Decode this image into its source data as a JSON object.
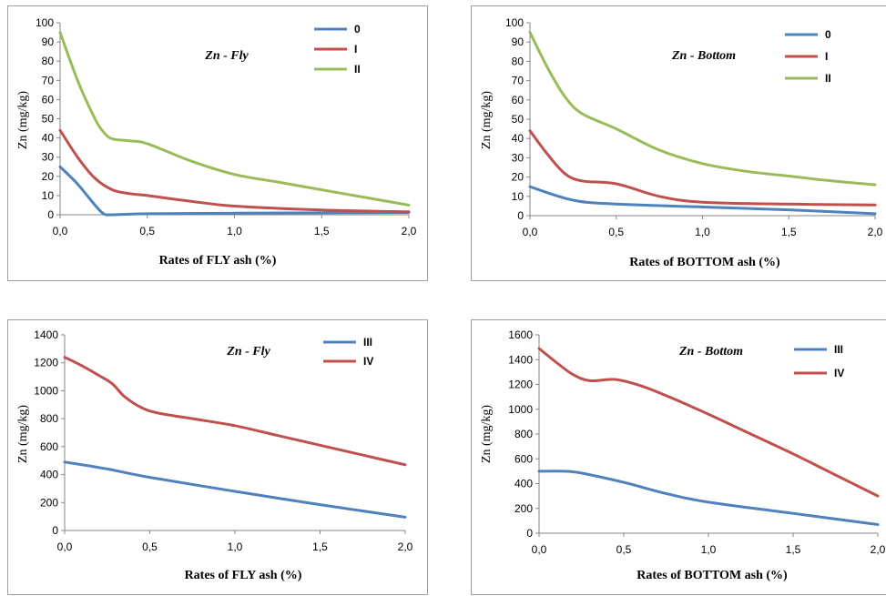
{
  "chart_data": [
    {
      "type": "line",
      "title": "Zn - Fly",
      "xlabel": "Rates of FLY ash (%)",
      "ylabel": "Zn (mg/kg)",
      "xlim": [
        0,
        2
      ],
      "ylim": [
        0,
        100
      ],
      "xticks": [
        "0,0",
        "0,5",
        "1,0",
        "1,5",
        "2,0"
      ],
      "yticks": [
        "0",
        "10",
        "20",
        "30",
        "40",
        "50",
        "60",
        "70",
        "80",
        "90",
        "100"
      ],
      "legend_position": "top-right",
      "grid": false,
      "series": [
        {
          "name": "0",
          "color": "#4f81bd",
          "x": [
            0,
            0.1,
            0.2,
            0.25,
            0.3,
            0.5,
            1.0,
            1.5,
            2.0
          ],
          "y": [
            25,
            16,
            5,
            0.5,
            0,
            0.5,
            0.8,
            1.0,
            1.2
          ]
        },
        {
          "name": "I",
          "color": "#c0504d",
          "x": [
            0,
            0.1,
            0.2,
            0.3,
            0.4,
            0.5,
            0.75,
            1.0,
            1.5,
            2.0
          ],
          "y": [
            44,
            30,
            19,
            13,
            11,
            10,
            7,
            4.5,
            2.5,
            1.5
          ]
        },
        {
          "name": "II",
          "color": "#9bbb59",
          "x": [
            0,
            0.1,
            0.2,
            0.25,
            0.3,
            0.4,
            0.5,
            0.75,
            1.0,
            1.25,
            1.5,
            1.75,
            2.0
          ],
          "y": [
            95,
            70,
            50,
            43,
            39.5,
            38.5,
            37,
            28,
            21,
            17,
            13,
            9,
            5
          ]
        }
      ]
    },
    {
      "type": "line",
      "title": "Zn - Bottom",
      "xlabel": "Rates of BOTTOM ash (%)",
      "ylabel": "Zn (mg/kg)",
      "xlim": [
        0,
        2
      ],
      "ylim": [
        0,
        100
      ],
      "xticks": [
        "0,0",
        "0,5",
        "1,0",
        "1,5",
        "2,0"
      ],
      "yticks": [
        "0",
        "10",
        "20",
        "30",
        "40",
        "50",
        "60",
        "70",
        "80",
        "90",
        "100"
      ],
      "legend_position": "top-right",
      "grid": false,
      "series": [
        {
          "name": "0",
          "color": "#4f81bd",
          "x": [
            0,
            0.25,
            0.5,
            1.0,
            1.5,
            2.0
          ],
          "y": [
            15,
            8,
            6,
            4.5,
            3,
            1
          ]
        },
        {
          "name": "I",
          "color": "#c0504d",
          "x": [
            0,
            0.1,
            0.2,
            0.3,
            0.5,
            0.75,
            1.0,
            1.5,
            2.0
          ],
          "y": [
            44,
            32,
            22,
            18,
            16.5,
            10,
            7,
            6,
            5.5
          ]
        },
        {
          "name": "II",
          "color": "#9bbb59",
          "x": [
            0,
            0.1,
            0.2,
            0.3,
            0.5,
            0.75,
            1.0,
            1.25,
            1.5,
            1.75,
            2.0
          ],
          "y": [
            95,
            77,
            62,
            53,
            45,
            34,
            27,
            23,
            20.5,
            18,
            16
          ]
        }
      ]
    },
    {
      "type": "line",
      "title": "Zn - Fly",
      "xlabel": "Rates of FLY ash (%)",
      "ylabel": "Zn (mg/kg)",
      "xlim": [
        0,
        2
      ],
      "ylim": [
        0,
        1400
      ],
      "xticks": [
        "0,0",
        "0,5",
        "1,0",
        "1,5",
        "2,0"
      ],
      "yticks": [
        "0",
        "200",
        "400",
        "600",
        "800",
        "1000",
        "1200",
        "1400"
      ],
      "legend_position": "top-right",
      "grid": false,
      "series": [
        {
          "name": "III",
          "color": "#4f81bd",
          "x": [
            0,
            0.25,
            0.5,
            1.0,
            1.5,
            2.0
          ],
          "y": [
            490,
            440,
            380,
            280,
            185,
            95
          ]
        },
        {
          "name": "IV",
          "color": "#c0504d",
          "x": [
            0,
            0.1,
            0.2,
            0.28,
            0.35,
            0.45,
            0.55,
            0.75,
            1.0,
            1.25,
            1.5,
            1.75,
            2.0
          ],
          "y": [
            1240,
            1180,
            1110,
            1050,
            960,
            880,
            840,
            800,
            750,
            680,
            610,
            540,
            470
          ]
        }
      ]
    },
    {
      "type": "line",
      "title": "Zn - Bottom",
      "xlabel": "Rates of BOTTOM ash (%)",
      "ylabel": "Zn (mg/kg)",
      "xlim": [
        0,
        2
      ],
      "ylim": [
        0,
        1600
      ],
      "xticks": [
        "0,0",
        "0,5",
        "1,0",
        "1,5",
        "2,0"
      ],
      "yticks": [
        "0",
        "200",
        "400",
        "600",
        "800",
        "1000",
        "1200",
        "1400",
        "1600"
      ],
      "legend_position": "top-right",
      "grid": false,
      "series": [
        {
          "name": "III",
          "color": "#4f81bd",
          "x": [
            0,
            0.15,
            0.25,
            0.5,
            0.75,
            1.0,
            1.5,
            2.0
          ],
          "y": [
            500,
            500,
            485,
            410,
            320,
            250,
            160,
            70
          ]
        },
        {
          "name": "IV",
          "color": "#c0504d",
          "x": [
            0,
            0.1,
            0.2,
            0.3,
            0.45,
            0.6,
            0.75,
            1.0,
            1.25,
            1.5,
            1.75,
            2.0
          ],
          "y": [
            1490,
            1380,
            1280,
            1230,
            1240,
            1190,
            1110,
            960,
            800,
            640,
            470,
            300
          ]
        }
      ]
    }
  ]
}
